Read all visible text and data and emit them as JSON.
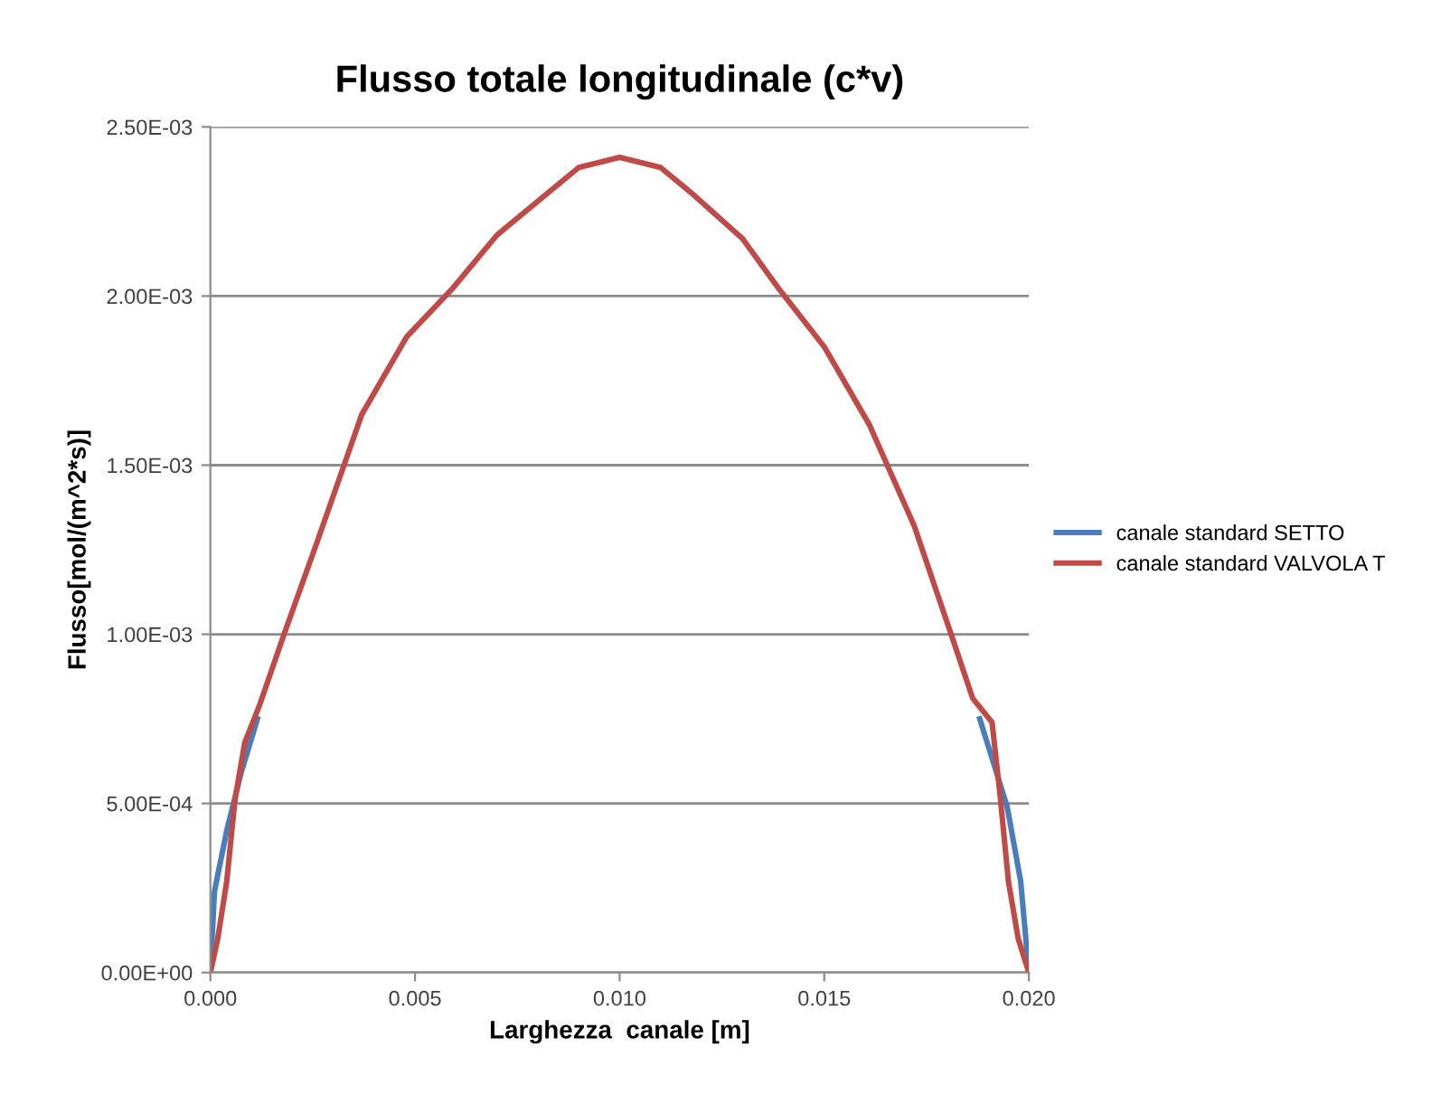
{
  "chart_data": {
    "type": "line",
    "title": "Flusso totale longitudinale (c*v)",
    "xlabel": "Larghezza  canale [m]",
    "ylabel": "Flusso[mol/(m^2*s)]",
    "xlim": [
      0,
      0.02
    ],
    "xticks": [
      {
        "value": 0,
        "label": "0.000"
      },
      {
        "value": 0.005,
        "label": "0.005"
      },
      {
        "value": 0.01,
        "label": "0.010"
      },
      {
        "value": 0.015,
        "label": "0.015"
      },
      {
        "value": 0.02,
        "label": "0.020"
      }
    ],
    "ylim": [
      0,
      0.0025
    ],
    "yticks": [
      {
        "value": 0,
        "label": "0.00E+00"
      },
      {
        "value": 0.0005,
        "label": "5.00E-04"
      },
      {
        "value": 0.001,
        "label": "1.00E-03"
      },
      {
        "value": 0.0015,
        "label": "1.50E-03"
      },
      {
        "value": 0.002,
        "label": "2.00E-03"
      },
      {
        "value": 0.0025,
        "label": "2.50E-03"
      }
    ],
    "grid": "y",
    "legend": "right",
    "line_style": "solid",
    "marker": "none",
    "series": [
      {
        "name": "canale standard SETTO",
        "color": "#4a7ebb",
        "x": [
          0,
          0.0001,
          0.0004,
          0.00075,
          0.00115,
          0.0018,
          0.0026,
          0.0037,
          0.0048,
          0.0059,
          0.007,
          0.0081,
          0.009,
          0.01,
          0.011,
          0.0118,
          0.013,
          0.0139,
          0.015,
          0.0161,
          0.0172,
          0.0181,
          0.0188,
          0.01947,
          0.0198,
          0.02
        ],
        "values": [
          0,
          0.00024,
          0.00042,
          0.00059,
          0.00075,
          null,
          null,
          null,
          null,
          null,
          null,
          null,
          null,
          null,
          null,
          null,
          null,
          null,
          null,
          null,
          null,
          null,
          0.00075,
          0.00049,
          0.00027,
          0
        ]
      },
      {
        "name": "canale standard VALVOLA T",
        "color": "#be4b48",
        "x": [
          0,
          0.00018,
          0.0004,
          0.0006,
          0.00084,
          0.0012,
          0.0018,
          0.0026,
          0.0037,
          0.0048,
          0.0059,
          0.007,
          0.0081,
          0.009,
          0.01,
          0.011,
          0.0118,
          0.013,
          0.0139,
          0.015,
          0.0161,
          0.0172,
          0.0181,
          0.01863,
          0.0191,
          0.0193,
          0.0195,
          0.01974,
          0.02
        ],
        "values": [
          0,
          0.0001,
          0.00027,
          0.00051,
          0.00068,
          0.00079,
          0.001,
          0.00127,
          0.00165,
          0.00188,
          0.00202,
          0.00218,
          0.00229,
          0.00238,
          0.00241,
          0.00238,
          0.0023,
          0.00217,
          0.00202,
          0.00185,
          0.00162,
          0.00132,
          0.001,
          0.00081,
          0.00074,
          0.00052,
          0.00027,
          0.0001,
          0
        ]
      }
    ]
  }
}
